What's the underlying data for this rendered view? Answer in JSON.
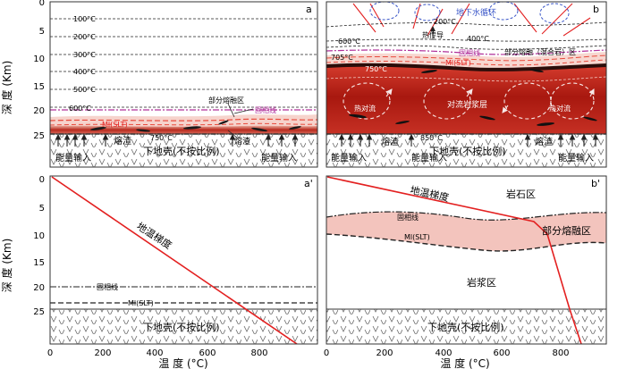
{
  "panel_a": {
    "letter": "a",
    "isotherms": [
      "100°C",
      "200°C",
      "300°C",
      "400°C",
      "500°C"
    ],
    "iso_600": "600°C",
    "iso_750": "750°C",
    "partial_melt": "部分熔融区",
    "solidus": "固相线",
    "ml": "Ml(SLT)",
    "slag_1": "熔渣",
    "slag_2": "熔渣",
    "lower_crust": "下地壳(不按比例)",
    "energy_1": "能量输入",
    "energy_2": "能量输入"
  },
  "panel_b": {
    "letter": "b",
    "groundwater": "地下水循环",
    "iso_200": "200°C",
    "heat_conduction": "热传导",
    "iso_400": "400°C",
    "iso_600": "600°C",
    "solidus": "固相线",
    "partial_melt": "部分熔融（混合岩）区",
    "iso_705": "705°C",
    "ml": "Ml(SLT)",
    "iso_750": "750°C",
    "hot_convection_1": "热对流",
    "convective_magma": "对流岩浆层",
    "hot_convection_2": "热对流",
    "iso_850": "850°C",
    "slag_1": "熔渣",
    "slag_2": "熔渣",
    "lower_crust": "下地壳(不按比例)",
    "energy_1": "能量输入",
    "energy_2": "能量输入",
    "energy_3": "能量输入"
  },
  "panel_a2": {
    "letter": "a'",
    "geotherm": "地温梯度",
    "solidus": "固相线",
    "ml": "Ml(SLT)",
    "lower_crust": "下地壳(不按比例)"
  },
  "panel_b2": {
    "letter": "b'",
    "geotherm": "地温梯度",
    "rock_zone": "岩石区",
    "solidus": "固相线",
    "partial_melt": "部分熔融区",
    "ml": "Ml(SLT)",
    "magma_zone": "岩浆区",
    "lower_crust": "下地壳(不按比例)"
  },
  "axes": {
    "depth_label": "深 度 (Km)",
    "temp_label": "温  度 (°C)",
    "depth_ticks": [
      "0",
      "5",
      "10",
      "15",
      "20",
      "25"
    ],
    "temp_ticks": [
      "0",
      "200",
      "400",
      "600",
      "800"
    ]
  },
  "colors": {
    "red_line": "#e32020",
    "magma_dark": "#a81810",
    "magma_light": "#f3c4bd",
    "solidus": "#b0309a",
    "groundwater": "#3a56c8"
  }
}
